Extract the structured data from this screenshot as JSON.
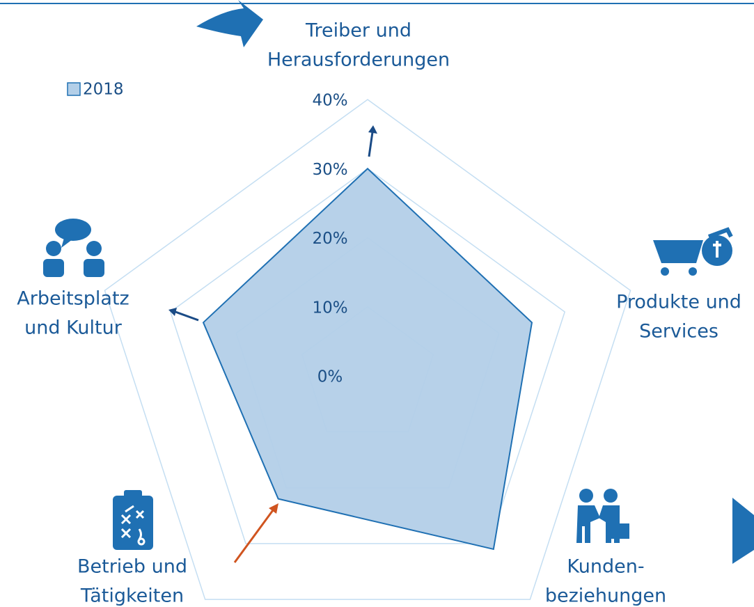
{
  "chart_data": {
    "type": "radar",
    "categories": [
      [
        "Treiber und",
        "Herausforderungen"
      ],
      [
        "Produkte und",
        "Services"
      ],
      [
        "Kunden-",
        "beziehungen"
      ],
      [
        "Betrieb und",
        "Tätigkeiten"
      ],
      [
        "Arbeitsplatz",
        "und Kultur"
      ]
    ],
    "series": [
      {
        "name": "2018",
        "color": "#1f70b3",
        "values": [
          30,
          25,
          31,
          22,
          25
        ]
      }
    ],
    "ylim": [
      0,
      40
    ],
    "yticks": [
      {
        "value": 0,
        "label": "0%"
      },
      {
        "value": 10,
        "label": "10%"
      },
      {
        "value": 20,
        "label": "20%"
      },
      {
        "value": 30,
        "label": "30%"
      },
      {
        "value": 40,
        "label": "40%"
      }
    ],
    "grid": true
  }
}
